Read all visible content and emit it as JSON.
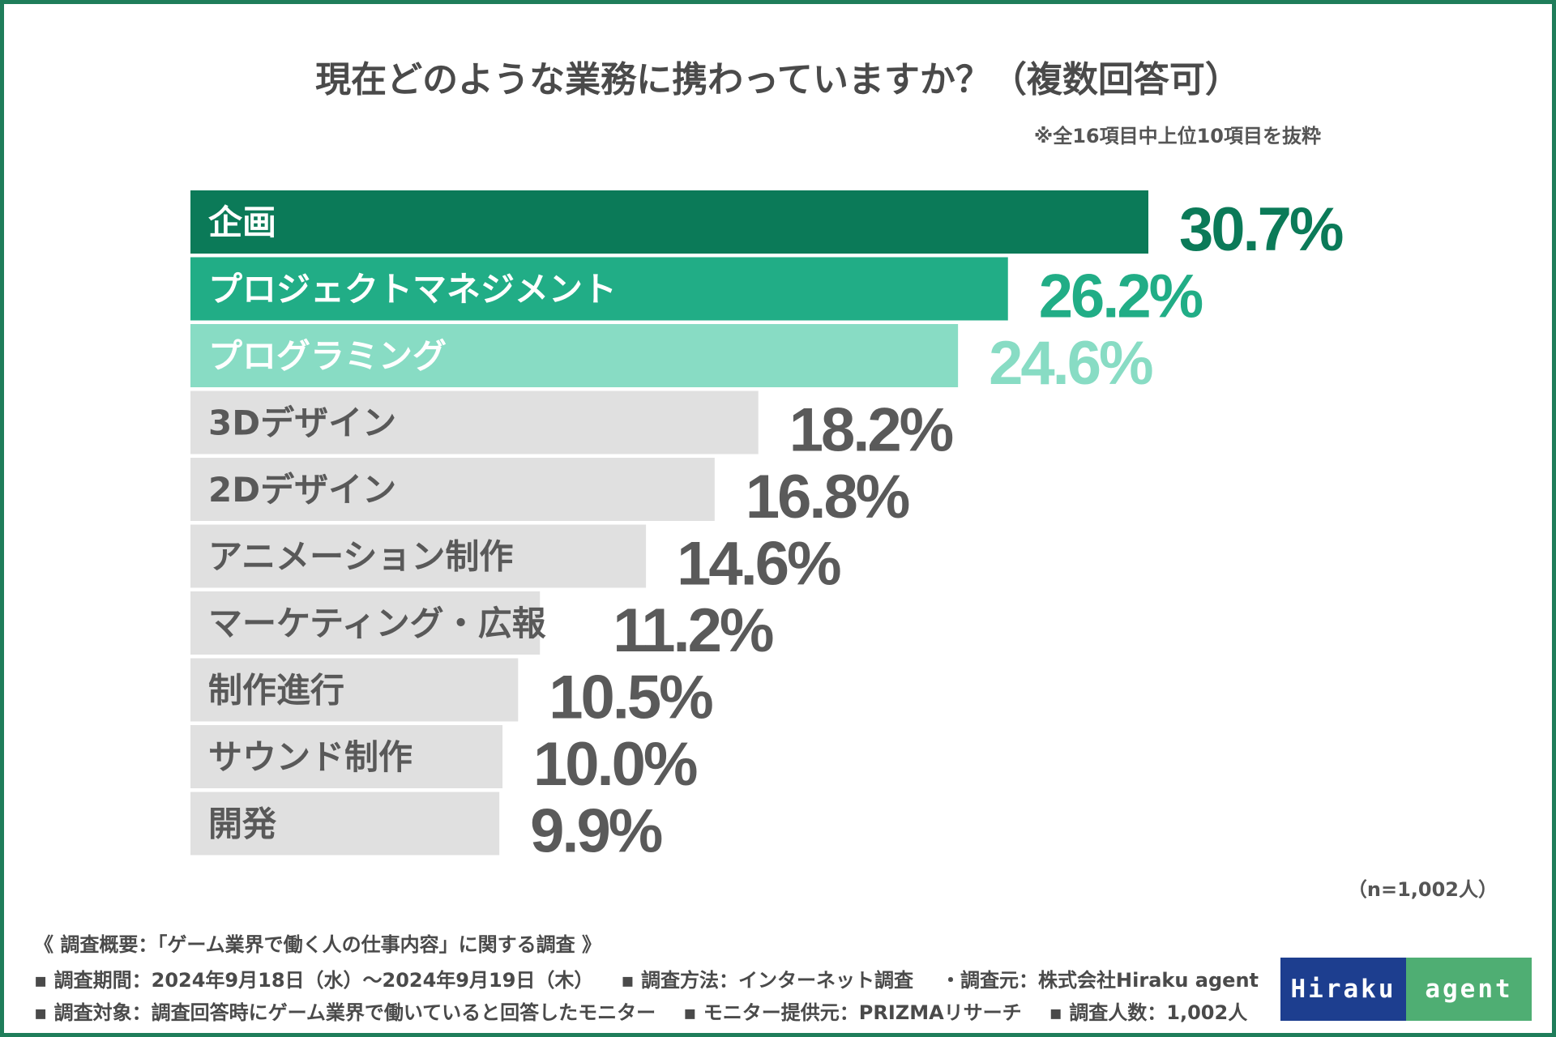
{
  "chart_data": {
    "type": "bar",
    "orientation": "horizontal",
    "title": "現在どのような業務に携わっていますか？（複数回答可）",
    "note": "※全16項目中上位10項目を抜粋",
    "categories": [
      "企画",
      "プロジェクトマネジメント",
      "プログラミング",
      "3Dデザイン",
      "2Dデザイン",
      "アニメーション制作",
      "マーケティング・広報",
      "制作進行",
      "サウンド制作",
      "開発"
    ],
    "values": [
      30.7,
      26.2,
      24.6,
      18.2,
      16.8,
      14.6,
      11.2,
      10.5,
      10.0,
      9.9
    ],
    "value_labels": [
      "30.7%",
      "26.2%",
      "24.6%",
      "18.2%",
      "16.8%",
      "14.6%",
      "11.2%",
      "10.5%",
      "10.0%",
      "9.9%"
    ],
    "unit": "%",
    "xlim": [
      0,
      30.7
    ],
    "colors": [
      "#0b7a58",
      "#21ad86",
      "#88dcc4",
      "#e0e0e0",
      "#e0e0e0",
      "#e0e0e0",
      "#e0e0e0",
      "#e0e0e0",
      "#e0e0e0",
      "#e0e0e0"
    ],
    "label_colors": [
      "#ffffff",
      "#ffffff",
      "#ffffff",
      "#595959",
      "#595959",
      "#595959",
      "#595959",
      "#595959",
      "#595959",
      "#595959"
    ],
    "value_colors": [
      "#0b7a58",
      "#21ad86",
      "#88dcc4",
      "#5a5a5a",
      "#5a5a5a",
      "#5a5a5a",
      "#5a5a5a",
      "#5a5a5a",
      "#5a5a5a",
      "#5a5a5a"
    ]
  },
  "sample": "（n=1,002人）",
  "survey": {
    "heading": "《 調査概要：「ゲーム業界で働く人の仕事内容」に関する調査 》",
    "period": "▪ 調査期間：2024年9月18日（水）〜2024年9月19日（木）",
    "method": "▪ 調査方法：インターネット調査",
    "source": "・調査元：株式会社Hiraku agent",
    "target": "▪ 調査対象：調査回答時にゲーム業界で働いていると回答したモニター",
    "provider": "▪ モニター提供元：PRIZMAリサーチ",
    "count": "▪ 調査人数：1,002人"
  },
  "logo": {
    "left": "Hiraku",
    "right": "agent"
  },
  "frame_color": "#1f7d5a"
}
